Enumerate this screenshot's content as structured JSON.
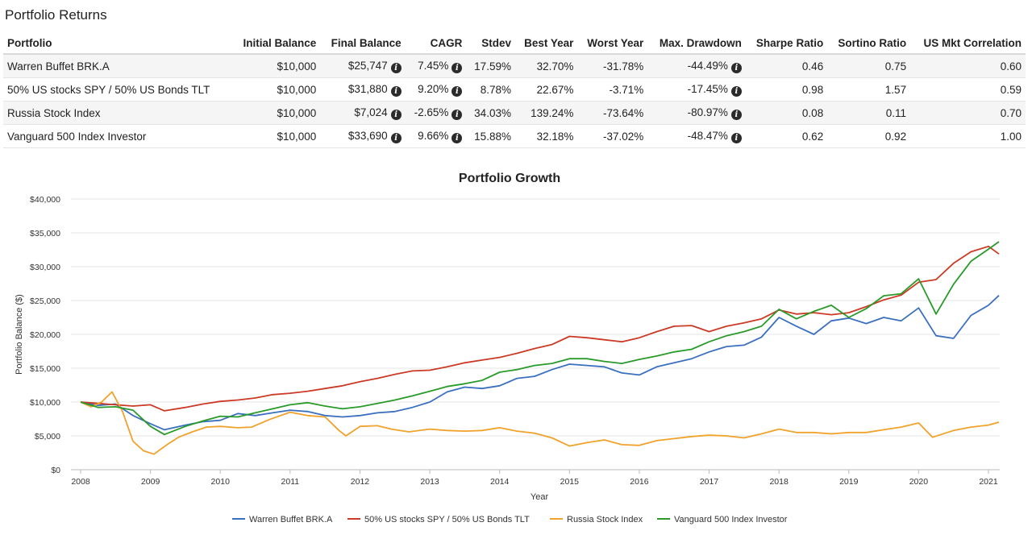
{
  "returns": {
    "title": "Portfolio Returns",
    "columns": [
      "Portfolio",
      "Initial Balance",
      "Final Balance",
      "CAGR",
      "Stdev",
      "Best Year",
      "Worst Year",
      "Max. Drawdown",
      "Sharpe Ratio",
      "Sortino Ratio",
      "US Mkt Correlation"
    ],
    "info_icon": "info-circle-icon",
    "rows": [
      {
        "portfolio": "Warren Buffet BRK.A",
        "initial": "$10,000",
        "final": "$25,747",
        "cagr": "7.45%",
        "stdev": "17.59%",
        "best": "32.70%",
        "worst": "-31.78%",
        "maxdd": "-44.49%",
        "sharpe": "0.46",
        "sortino": "0.75",
        "corr": "0.60"
      },
      {
        "portfolio": "50% US stocks SPY / 50% US Bonds TLT",
        "initial": "$10,000",
        "final": "$31,880",
        "cagr": "9.20%",
        "stdev": "8.78%",
        "best": "22.67%",
        "worst": "-3.71%",
        "maxdd": "-17.45%",
        "sharpe": "0.98",
        "sortino": "1.57",
        "corr": "0.59"
      },
      {
        "portfolio": "Russia Stock Index",
        "initial": "$10,000",
        "final": "$7,024",
        "cagr": "-2.65%",
        "stdev": "34.03%",
        "best": "139.24%",
        "worst": "-73.64%",
        "maxdd": "-80.97%",
        "sharpe": "0.08",
        "sortino": "0.11",
        "corr": "0.70"
      },
      {
        "portfolio": "Vanguard 500 Index Investor",
        "initial": "$10,000",
        "final": "$33,690",
        "cagr": "9.66%",
        "stdev": "15.88%",
        "best": "32.18%",
        "worst": "-37.02%",
        "maxdd": "-48.47%",
        "sharpe": "0.62",
        "sortino": "0.92",
        "corr": "1.00"
      }
    ]
  },
  "chart_data": {
    "type": "line",
    "title": "Portfolio Growth",
    "xlabel": "Year",
    "ylabel": "Portfolio Balance ($)",
    "xlim": [
      2008,
      2021.2
    ],
    "ylim": [
      0,
      40000
    ],
    "x_ticks": [
      2008,
      2009,
      2010,
      2011,
      2012,
      2013,
      2014,
      2015,
      2016,
      2017,
      2018,
      2019,
      2020,
      2021
    ],
    "y_ticks": [
      0,
      5000,
      10000,
      15000,
      20000,
      25000,
      30000,
      35000,
      40000
    ],
    "y_tick_labels": [
      "$0",
      "$5,000",
      "$10,000",
      "$15,000",
      "$20,000",
      "$25,000",
      "$30,000",
      "$35,000",
      "$40,000"
    ],
    "grid": true,
    "legend_position": "bottom",
    "series": [
      {
        "name": "Warren Buffet BRK.A",
        "color": "#3b6fbf",
        "x": [
          2008,
          2008.25,
          2008.5,
          2008.75,
          2009,
          2009.2,
          2009.5,
          2009.75,
          2010,
          2010.25,
          2010.5,
          2010.75,
          2011,
          2011.25,
          2011.5,
          2011.75,
          2012,
          2012.25,
          2012.5,
          2012.75,
          2013,
          2013.25,
          2013.5,
          2013.75,
          2014,
          2014.25,
          2014.5,
          2014.75,
          2015,
          2015.25,
          2015.5,
          2015.75,
          2016,
          2016.25,
          2016.5,
          2016.75,
          2017,
          2017.25,
          2017.5,
          2017.75,
          2018,
          2018.25,
          2018.5,
          2018.75,
          2019,
          2019.25,
          2019.5,
          2019.75,
          2020,
          2020.25,
          2020.5,
          2020.75,
          2021,
          2021.15
        ],
        "values": [
          10000,
          9500,
          9700,
          8000,
          6800,
          5900,
          6600,
          7100,
          7300,
          8300,
          8000,
          8400,
          8800,
          8600,
          8000,
          7800,
          8000,
          8400,
          8600,
          9200,
          10000,
          11500,
          12200,
          12000,
          12400,
          13500,
          13800,
          14800,
          15600,
          15400,
          15200,
          14300,
          14000,
          15200,
          15800,
          16400,
          17400,
          18200,
          18400,
          19600,
          22500,
          21200,
          20000,
          22000,
          22400,
          21600,
          22500,
          22000,
          23900,
          19800,
          19400,
          22800,
          24300,
          25747
        ]
      },
      {
        "name": "50% US stocks SPY / 50% US Bonds TLT",
        "color": "#cc3a25",
        "x": [
          2008,
          2008.25,
          2008.5,
          2008.75,
          2009,
          2009.2,
          2009.5,
          2009.75,
          2010,
          2010.25,
          2010.5,
          2010.75,
          2011,
          2011.25,
          2011.5,
          2011.75,
          2012,
          2012.25,
          2012.5,
          2012.75,
          2013,
          2013.25,
          2013.5,
          2013.75,
          2014,
          2014.25,
          2014.5,
          2014.75,
          2015,
          2015.25,
          2015.5,
          2015.75,
          2016,
          2016.25,
          2016.5,
          2016.75,
          2017,
          2017.25,
          2017.5,
          2017.75,
          2018,
          2018.25,
          2018.5,
          2018.75,
          2019,
          2019.25,
          2019.5,
          2019.75,
          2020,
          2020.25,
          2020.5,
          2020.75,
          2021,
          2021.15
        ],
        "values": [
          10000,
          9800,
          9600,
          9400,
          9600,
          8700,
          9200,
          9700,
          10100,
          10300,
          10600,
          11100,
          11300,
          11600,
          12000,
          12400,
          13000,
          13500,
          14100,
          14600,
          14700,
          15200,
          15800,
          16200,
          16600,
          17200,
          17900,
          18500,
          19700,
          19500,
          19200,
          18900,
          19500,
          20400,
          21200,
          21300,
          20400,
          21200,
          21700,
          22300,
          23600,
          23000,
          23200,
          22900,
          23200,
          24100,
          25100,
          25800,
          27700,
          28100,
          30500,
          32200,
          33000,
          31880
        ]
      },
      {
        "name": "Russia Stock Index",
        "color": "#f0a22a",
        "x": [
          2008,
          2008.15,
          2008.3,
          2008.45,
          2008.6,
          2008.75,
          2008.9,
          2009.05,
          2009.25,
          2009.4,
          2009.6,
          2009.8,
          2010,
          2010.25,
          2010.45,
          2010.7,
          2011,
          2011.25,
          2011.5,
          2011.7,
          2011.8,
          2012,
          2012.25,
          2012.45,
          2012.7,
          2013,
          2013.25,
          2013.5,
          2013.75,
          2014,
          2014.25,
          2014.5,
          2014.75,
          2015,
          2015.25,
          2015.5,
          2015.75,
          2016,
          2016.25,
          2016.5,
          2016.75,
          2017,
          2017.25,
          2017.5,
          2017.75,
          2018,
          2018.25,
          2018.5,
          2018.75,
          2019,
          2019.25,
          2019.5,
          2019.75,
          2020,
          2020.2,
          2020.5,
          2020.75,
          2021,
          2021.15
        ],
        "values": [
          10000,
          9300,
          10000,
          11500,
          8600,
          4200,
          2800,
          2300,
          3800,
          4800,
          5600,
          6300,
          6400,
          6200,
          6300,
          7400,
          8500,
          8000,
          7800,
          5800,
          5000,
          6400,
          6500,
          6000,
          5600,
          6000,
          5800,
          5700,
          5800,
          6200,
          5700,
          5400,
          4700,
          3500,
          4000,
          4400,
          3700,
          3600,
          4300,
          4600,
          4900,
          5100,
          5000,
          4700,
          5300,
          6000,
          5500,
          5500,
          5300,
          5500,
          5500,
          5900,
          6300,
          6900,
          4800,
          5800,
          6300,
          6600,
          7024
        ]
      },
      {
        "name": "Vanguard 500 Index Investor",
        "color": "#2a9a2a",
        "x": [
          2008,
          2008.25,
          2008.5,
          2008.75,
          2009,
          2009.2,
          2009.5,
          2009.75,
          2010,
          2010.25,
          2010.5,
          2010.75,
          2011,
          2011.25,
          2011.5,
          2011.75,
          2012,
          2012.25,
          2012.5,
          2012.75,
          2013,
          2013.25,
          2013.5,
          2013.75,
          2014,
          2014.25,
          2014.5,
          2014.75,
          2015,
          2015.25,
          2015.5,
          2015.75,
          2016,
          2016.25,
          2016.5,
          2016.75,
          2017,
          2017.25,
          2017.5,
          2017.75,
          2018,
          2018.25,
          2018.5,
          2018.75,
          2019,
          2019.25,
          2019.5,
          2019.75,
          2020,
          2020.25,
          2020.5,
          2020.75,
          2021,
          2021.15
        ],
        "values": [
          10000,
          9200,
          9300,
          8800,
          6400,
          5200,
          6400,
          7200,
          7900,
          7800,
          8400,
          9000,
          9600,
          9900,
          9400,
          9000,
          9300,
          9800,
          10300,
          10900,
          11600,
          12300,
          12700,
          13200,
          14400,
          14800,
          15400,
          15700,
          16400,
          16400,
          16000,
          15700,
          16300,
          16800,
          17400,
          17800,
          18900,
          19800,
          20400,
          21200,
          23700,
          22300,
          23400,
          24300,
          22500,
          23800,
          25700,
          26000,
          28200,
          23000,
          27400,
          30800,
          32600,
          33690
        ]
      }
    ]
  }
}
